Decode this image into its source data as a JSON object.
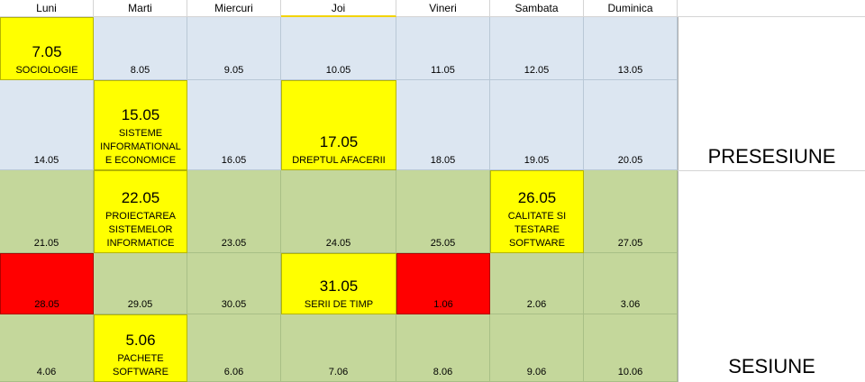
{
  "days": [
    "Luni",
    "Marti",
    "Miercuri",
    "Joi",
    "Vineri",
    "Sambata",
    "Duminica"
  ],
  "week1": [
    "7.05",
    "8.05",
    "9.05",
    "10.05",
    "11.05",
    "12.05",
    "13.05"
  ],
  "week2": [
    "14.05",
    "15.05",
    "16.05",
    "17.05",
    "18.05",
    "19.05",
    "20.05"
  ],
  "week3": [
    "21.05",
    "22.05",
    "23.05",
    "24.05",
    "25.05",
    "26.05",
    "27.05"
  ],
  "week4": [
    "28.05",
    "29.05",
    "30.05",
    "31.05",
    "1.06",
    "2.06",
    "3.06"
  ],
  "week5": [
    "4.06",
    "5.06",
    "6.06",
    "7.06",
    "8.06",
    "9.06",
    "10.06"
  ],
  "exams": {
    "sociologie": {
      "date": "7.05",
      "name": "SOCIOLOGIE"
    },
    "sisteme": {
      "date": "15.05",
      "l1": "SISTEME",
      "l2": "INFORMATIONAL",
      "l3": "E ECONOMICE"
    },
    "dreptul": {
      "date": "17.05",
      "name": "DREPTUL AFACERII"
    },
    "proiectarea": {
      "date": "22.05",
      "l1": "PROIECTAREA",
      "l2": "SISTEMELOR",
      "l3": "INFORMATICE"
    },
    "calitate": {
      "date": "26.05",
      "l1": "CALITATE SI",
      "l2": "TESTARE",
      "l3": "SOFTWARE"
    },
    "serii": {
      "date": "31.05",
      "name": "SERII DE TIMP"
    },
    "pachete": {
      "date": "5.06",
      "l1": "PACHETE",
      "l2": "SOFTWARE"
    }
  },
  "sections": {
    "presesiune": "PRESESIUNE",
    "sesiune": "SESIUNE"
  },
  "colors": {
    "presesiune": "#dce6f1",
    "sesiune": "#c4d79b",
    "exam": "#ffff00",
    "blocked": "#ff0000"
  }
}
